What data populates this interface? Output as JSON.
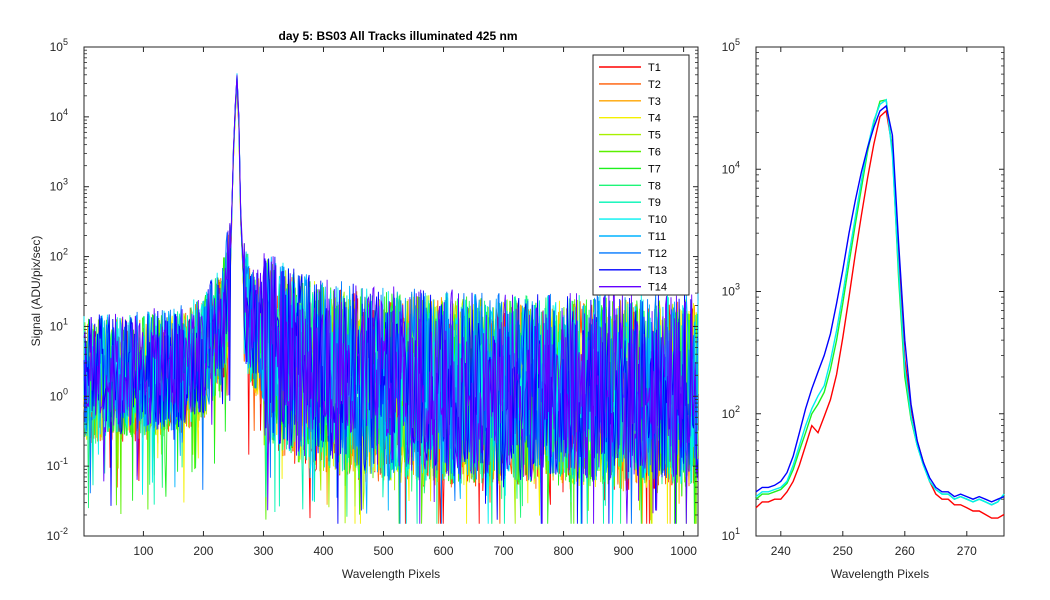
{
  "chart_data": [
    {
      "type": "line",
      "title": "day 5: BS03   All Tracks illuminated   425 nm",
      "xlabel": "Wavelength Pixels",
      "ylabel": "Signal (ADU/pix/sec)",
      "xlim": [
        1,
        1024
      ],
      "ylim": [
        0.01,
        100000
      ],
      "yscale": "log",
      "grid": false,
      "legend": "top-right",
      "x_ticks": [
        "100",
        "200",
        "300",
        "400",
        "500",
        "600",
        "700",
        "800",
        "900",
        "1000"
      ],
      "y_ticks": [
        {
          "base": "10",
          "exp": "-2"
        },
        {
          "base": "10",
          "exp": "-1"
        },
        {
          "base": "10",
          "exp": "0"
        },
        {
          "base": "10",
          "exp": "1"
        },
        {
          "base": "10",
          "exp": "2"
        },
        {
          "base": "10",
          "exp": "3"
        },
        {
          "base": "10",
          "exp": "4"
        },
        {
          "base": "10",
          "exp": "5"
        }
      ],
      "series_profile": {
        "x": [
          1,
          50,
          150,
          200,
          230,
          245,
          250,
          253,
          256,
          259,
          262,
          267,
          280,
          300,
          350,
          400,
          500,
          700,
          900,
          1024
        ],
        "y": [
          3,
          3,
          3.5,
          6,
          15,
          80,
          3000,
          12000,
          35000,
          8000,
          400,
          40,
          15,
          10,
          6,
          4,
          3,
          2.5,
          2.5,
          2.5
        ]
      },
      "series": [
        {
          "name": "T1",
          "color": "#ff0000"
        },
        {
          "name": "T2",
          "color": "#ff5a00"
        },
        {
          "name": "T3",
          "color": "#ffa500"
        },
        {
          "name": "T4",
          "color": "#f5f000"
        },
        {
          "name": "T5",
          "color": "#a8f000"
        },
        {
          "name": "T6",
          "color": "#5af000"
        },
        {
          "name": "T7",
          "color": "#1ef01e"
        },
        {
          "name": "T8",
          "color": "#1ef578"
        },
        {
          "name": "T9",
          "color": "#00f5b4"
        },
        {
          "name": "T10",
          "color": "#00f0f0"
        },
        {
          "name": "T11",
          "color": "#00b4ff"
        },
        {
          "name": "T12",
          "color": "#0078ff"
        },
        {
          "name": "T13",
          "color": "#0000ff"
        },
        {
          "name": "T14",
          "color": "#6400ff"
        }
      ]
    },
    {
      "type": "line",
      "title": "",
      "xlabel": "Wavelength Pixels",
      "ylabel": "",
      "xlim": [
        236,
        276
      ],
      "ylim": [
        10,
        100000
      ],
      "yscale": "log",
      "grid": false,
      "x_ticks": [
        "240",
        "250",
        "260",
        "270"
      ],
      "y_ticks": [
        {
          "base": "10",
          "exp": "1"
        },
        {
          "base": "10",
          "exp": "2"
        },
        {
          "base": "10",
          "exp": "3"
        },
        {
          "base": "10",
          "exp": "4"
        },
        {
          "base": "10",
          "exp": "5"
        }
      ],
      "x": [
        236,
        237,
        238,
        239,
        240,
        241,
        242,
        243,
        244,
        245,
        246,
        247,
        248,
        249,
        250,
        251,
        252,
        253,
        254,
        255,
        256,
        257,
        258,
        259,
        260,
        261,
        262,
        263,
        264,
        265,
        266,
        267,
        268,
        269,
        270,
        271,
        272,
        273,
        274,
        275,
        276
      ],
      "series": [
        {
          "name": "T1",
          "values": [
            17,
            19,
            19,
            20,
            20,
            23,
            28,
            38,
            55,
            80,
            70,
            95,
            130,
            210,
            420,
            900,
            2000,
            4200,
            8500,
            16000,
            27000,
            30000,
            15000,
            1800,
            280,
            110,
            60,
            40,
            28,
            22,
            20,
            20,
            18,
            18,
            17,
            16,
            16,
            15,
            14,
            14,
            15
          ]
        },
        {
          "name": "T7",
          "values": [
            20,
            22,
            22,
            23,
            24,
            27,
            35,
            50,
            70,
            100,
            120,
            150,
            230,
            400,
            800,
            1700,
            3500,
            7000,
            14000,
            24000,
            36000,
            37000,
            14000,
            1300,
            200,
            90,
            55,
            38,
            28,
            24,
            22,
            22,
            20,
            21,
            20,
            19,
            20,
            19,
            18,
            19,
            22
          ]
        },
        {
          "name": "T10",
          "values": [
            21,
            23,
            23,
            24,
            25,
            28,
            38,
            55,
            80,
            110,
            140,
            170,
            270,
            480,
            950,
            2000,
            4000,
            8000,
            15000,
            25000,
            34000,
            37000,
            13000,
            1500,
            240,
            95,
            55,
            38,
            28,
            24,
            22,
            22,
            20,
            21,
            20,
            19,
            20,
            19,
            18,
            19,
            22
          ]
        },
        {
          "name": "T13",
          "values": [
            23,
            25,
            25,
            26,
            28,
            33,
            45,
            70,
            110,
            160,
            220,
            300,
            450,
            800,
            1500,
            3000,
            5500,
            9500,
            15000,
            22000,
            30000,
            33000,
            19000,
            2500,
            400,
            120,
            60,
            40,
            30,
            25,
            23,
            23,
            21,
            22,
            21,
            20,
            21,
            20,
            19,
            20,
            21
          ]
        }
      ]
    }
  ]
}
